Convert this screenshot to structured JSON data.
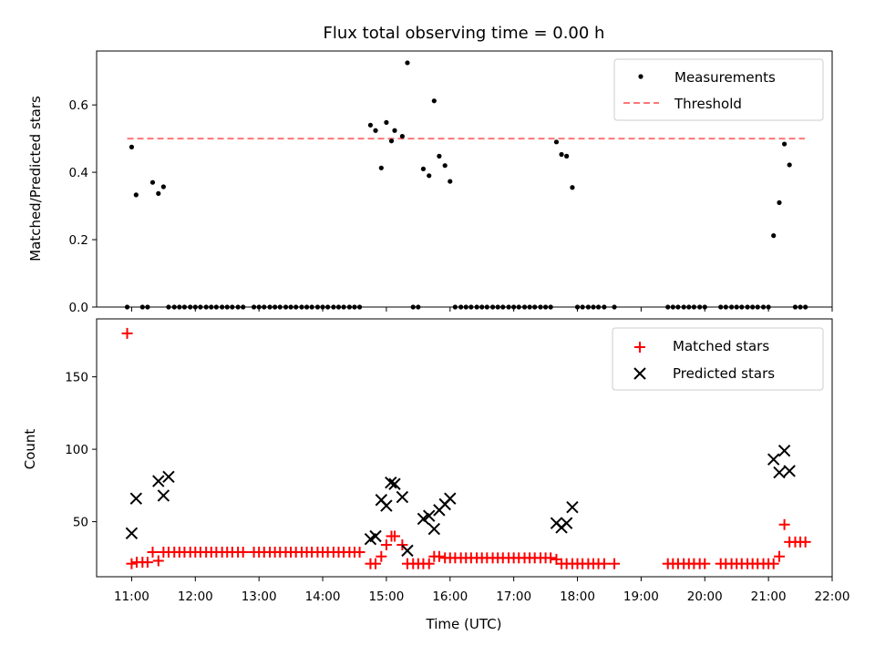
{
  "chart_data": [
    {
      "type": "scatter",
      "title": "Flux total observing time = 0.00 h",
      "xlabel": "",
      "ylabel": "Matched/Predicted stars",
      "xlim": [
        10.45,
        22.0
      ],
      "ylim": [
        0.0,
        0.76
      ],
      "yticks": [
        0.0,
        0.2,
        0.4,
        0.6
      ],
      "ytick_labels": [
        "0.0",
        "0.2",
        "0.4",
        "0.6"
      ],
      "xticks": [
        11,
        12,
        13,
        14,
        15,
        16,
        17,
        18,
        19,
        20,
        21,
        22
      ],
      "legend": {
        "position": "top-right",
        "entries": [
          "Measurements",
          "Threshold"
        ]
      },
      "colors": {
        "measurements": "#000000",
        "threshold": "#ff7777"
      },
      "threshold": {
        "value": 0.5,
        "x_start": 10.93,
        "x_end": 21.57
      },
      "series": [
        {
          "name": "Measurements",
          "x": [
            10.93,
            11.0,
            11.07,
            11.17,
            11.25,
            11.33,
            11.42,
            11.5,
            11.58,
            11.67,
            11.75,
            11.83,
            11.92,
            12.0,
            12.08,
            12.17,
            12.25,
            12.33,
            12.42,
            12.5,
            12.58,
            12.67,
            12.75,
            12.92,
            13.0,
            13.08,
            13.17,
            13.25,
            13.33,
            13.42,
            13.5,
            13.58,
            13.67,
            13.75,
            13.83,
            13.92,
            14.0,
            14.08,
            14.17,
            14.25,
            14.33,
            14.42,
            14.5,
            14.58,
            14.75,
            14.83,
            14.92,
            15.0,
            15.08,
            15.13,
            15.25,
            15.33,
            15.42,
            15.5,
            15.58,
            15.67,
            15.75,
            15.83,
            15.92,
            16.0,
            16.08,
            16.17,
            16.25,
            16.33,
            16.42,
            16.5,
            16.58,
            16.67,
            16.75,
            16.83,
            16.92,
            17.0,
            17.08,
            17.17,
            17.25,
            17.33,
            17.42,
            17.5,
            17.58,
            17.67,
            17.75,
            17.83,
            17.92,
            18.0,
            18.08,
            18.17,
            18.25,
            18.33,
            18.42,
            18.58,
            19.42,
            19.5,
            19.58,
            19.67,
            19.75,
            19.83,
            19.92,
            20.0,
            20.25,
            20.33,
            20.42,
            20.5,
            20.58,
            20.67,
            20.75,
            20.83,
            20.92,
            21.0,
            21.08,
            21.17,
            21.25,
            21.33,
            21.42,
            21.5,
            21.58
          ],
          "y": [
            0.0,
            0.475,
            0.333,
            0.0,
            0.0,
            0.37,
            0.337,
            0.357,
            0.0,
            0.0,
            0.0,
            0.0,
            0.0,
            0.0,
            0.0,
            0.0,
            0.0,
            0.0,
            0.0,
            0.0,
            0.0,
            0.0,
            0.0,
            0.0,
            0.0,
            0.0,
            0.0,
            0.0,
            0.0,
            0.0,
            0.0,
            0.0,
            0.0,
            0.0,
            0.0,
            0.0,
            0.0,
            0.0,
            0.0,
            0.0,
            0.0,
            0.0,
            0.0,
            0.0,
            0.54,
            0.524,
            0.413,
            0.548,
            0.493,
            0.524,
            0.507,
            0.725,
            0.0,
            0.0,
            0.41,
            0.39,
            0.612,
            0.448,
            0.42,
            0.373,
            0.0,
            0.0,
            0.0,
            0.0,
            0.0,
            0.0,
            0.0,
            0.0,
            0.0,
            0.0,
            0.0,
            0.0,
            0.0,
            0.0,
            0.0,
            0.0,
            0.0,
            0.0,
            0.0,
            0.49,
            0.453,
            0.448,
            0.355,
            0.0,
            0.0,
            0.0,
            0.0,
            0.0,
            0.0,
            0.0,
            0.0,
            0.0,
            0.0,
            0.0,
            0.0,
            0.0,
            0.0,
            0.0,
            0.0,
            0.0,
            0.0,
            0.0,
            0.0,
            0.0,
            0.0,
            0.0,
            0.0,
            0.0,
            0.212,
            0.31,
            0.484,
            0.422,
            0.0,
            0.0,
            0.0
          ]
        }
      ]
    },
    {
      "type": "scatter",
      "title": "",
      "xlabel": "Time (UTC)",
      "ylabel": "Count",
      "xlim": [
        10.45,
        22.0
      ],
      "ylim": [
        12,
        190
      ],
      "yticks": [
        50,
        100,
        150
      ],
      "ytick_labels": [
        "50",
        "100",
        "150"
      ],
      "xticks": [
        11,
        12,
        13,
        14,
        15,
        16,
        17,
        18,
        19,
        20,
        21,
        22
      ],
      "xtick_labels": [
        "11:00",
        "12:00",
        "13:00",
        "14:00",
        "15:00",
        "16:00",
        "17:00",
        "18:00",
        "19:00",
        "20:00",
        "21:00",
        "22:00"
      ],
      "legend": {
        "position": "top-right",
        "entries": [
          "Matched stars",
          "Predicted stars"
        ]
      },
      "colors": {
        "matched": "#ff0000",
        "predicted": "#000000"
      },
      "series": [
        {
          "name": "Matched stars",
          "x": [
            10.93,
            11.0,
            11.08,
            11.17,
            11.25,
            11.33,
            11.42,
            11.5,
            11.58,
            11.67,
            11.75,
            11.83,
            11.92,
            12.0,
            12.08,
            12.17,
            12.25,
            12.33,
            12.42,
            12.5,
            12.58,
            12.67,
            12.75,
            12.92,
            13.0,
            13.08,
            13.17,
            13.25,
            13.33,
            13.42,
            13.5,
            13.58,
            13.67,
            13.75,
            13.83,
            13.92,
            14.0,
            14.08,
            14.17,
            14.25,
            14.33,
            14.42,
            14.5,
            14.58,
            14.75,
            14.83,
            14.92,
            15.0,
            15.08,
            15.13,
            15.25,
            15.33,
            15.42,
            15.5,
            15.58,
            15.67,
            15.75,
            15.83,
            15.92,
            16.0,
            16.08,
            16.17,
            16.25,
            16.33,
            16.42,
            16.5,
            16.58,
            16.67,
            16.75,
            16.83,
            16.92,
            17.0,
            17.08,
            17.17,
            17.25,
            17.33,
            17.42,
            17.5,
            17.58,
            17.67,
            17.75,
            17.83,
            17.92,
            18.0,
            18.08,
            18.17,
            18.25,
            18.33,
            18.42,
            18.58,
            19.42,
            19.5,
            19.58,
            19.67,
            19.75,
            19.83,
            19.92,
            20.0,
            20.25,
            20.33,
            20.42,
            20.5,
            20.58,
            20.67,
            20.75,
            20.83,
            20.92,
            21.0,
            21.08,
            21.17,
            21.25,
            21.33,
            21.42,
            21.5,
            21.58
          ],
          "y": [
            180,
            21,
            22,
            22,
            22,
            29,
            23,
            29,
            29,
            29,
            29,
            29,
            29,
            29,
            29,
            29,
            29,
            29,
            29,
            29,
            29,
            29,
            29,
            29,
            29,
            29,
            29,
            29,
            29,
            29,
            29,
            29,
            29,
            29,
            29,
            29,
            29,
            29,
            29,
            29,
            29,
            29,
            29,
            29,
            21,
            21,
            26,
            34,
            40,
            40,
            34,
            21,
            21,
            21,
            21,
            21,
            26,
            26,
            25,
            25,
            25,
            25,
            25,
            25,
            25,
            25,
            25,
            25,
            25,
            25,
            25,
            25,
            25,
            25,
            25,
            25,
            25,
            25,
            25,
            24,
            21,
            21,
            21,
            21,
            21,
            21,
            21,
            21,
            21,
            21,
            21,
            21,
            21,
            21,
            21,
            21,
            21,
            21,
            21,
            21,
            21,
            21,
            21,
            21,
            21,
            21,
            21,
            21,
            21,
            26,
            48,
            36,
            36,
            36,
            36
          ]
        },
        {
          "name": "Predicted stars",
          "x": [
            11.0,
            11.07,
            11.42,
            11.5,
            11.58,
            14.75,
            14.83,
            14.92,
            15.0,
            15.07,
            15.13,
            15.25,
            15.33,
            15.58,
            15.67,
            15.75,
            15.83,
            15.92,
            16.0,
            17.67,
            17.75,
            17.83,
            17.92,
            21.08,
            21.17,
            21.25,
            21.33
          ],
          "y": [
            42,
            66,
            78,
            68,
            81,
            38,
            40,
            65,
            61,
            77,
            76,
            67,
            30,
            52,
            54,
            45,
            58,
            62,
            66,
            49,
            46,
            49,
            60,
            93,
            84,
            99,
            85
          ]
        }
      ]
    }
  ]
}
